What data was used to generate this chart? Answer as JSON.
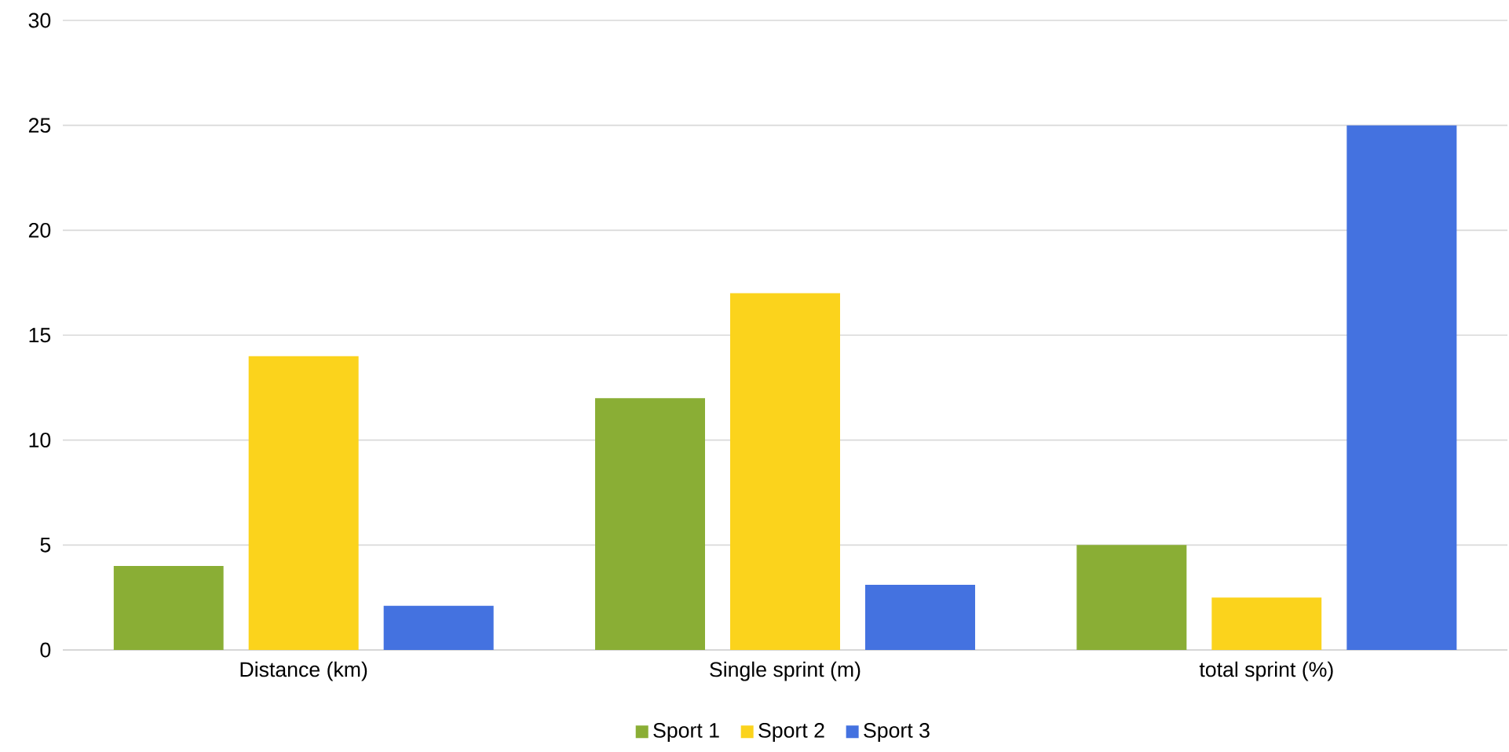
{
  "chart_data": {
    "type": "bar",
    "categories": [
      "Distance (km)",
      "Single sprint (m)",
      "total sprint (%)"
    ],
    "series": [
      {
        "name": "Sport 1",
        "color": "#8aae35",
        "values": [
          4,
          12,
          5
        ]
      },
      {
        "name": "Sport 2",
        "color": "#fbd31c",
        "values": [
          14,
          17,
          2.5
        ]
      },
      {
        "name": "Sport 3",
        "color": "#4472e0",
        "values": [
          2.1,
          3.1,
          25
        ]
      }
    ],
    "ylim": [
      0,
      30
    ],
    "yticks": [
      0,
      5,
      10,
      15,
      20,
      25,
      30
    ],
    "grid": "y",
    "legend": "bottom"
  }
}
